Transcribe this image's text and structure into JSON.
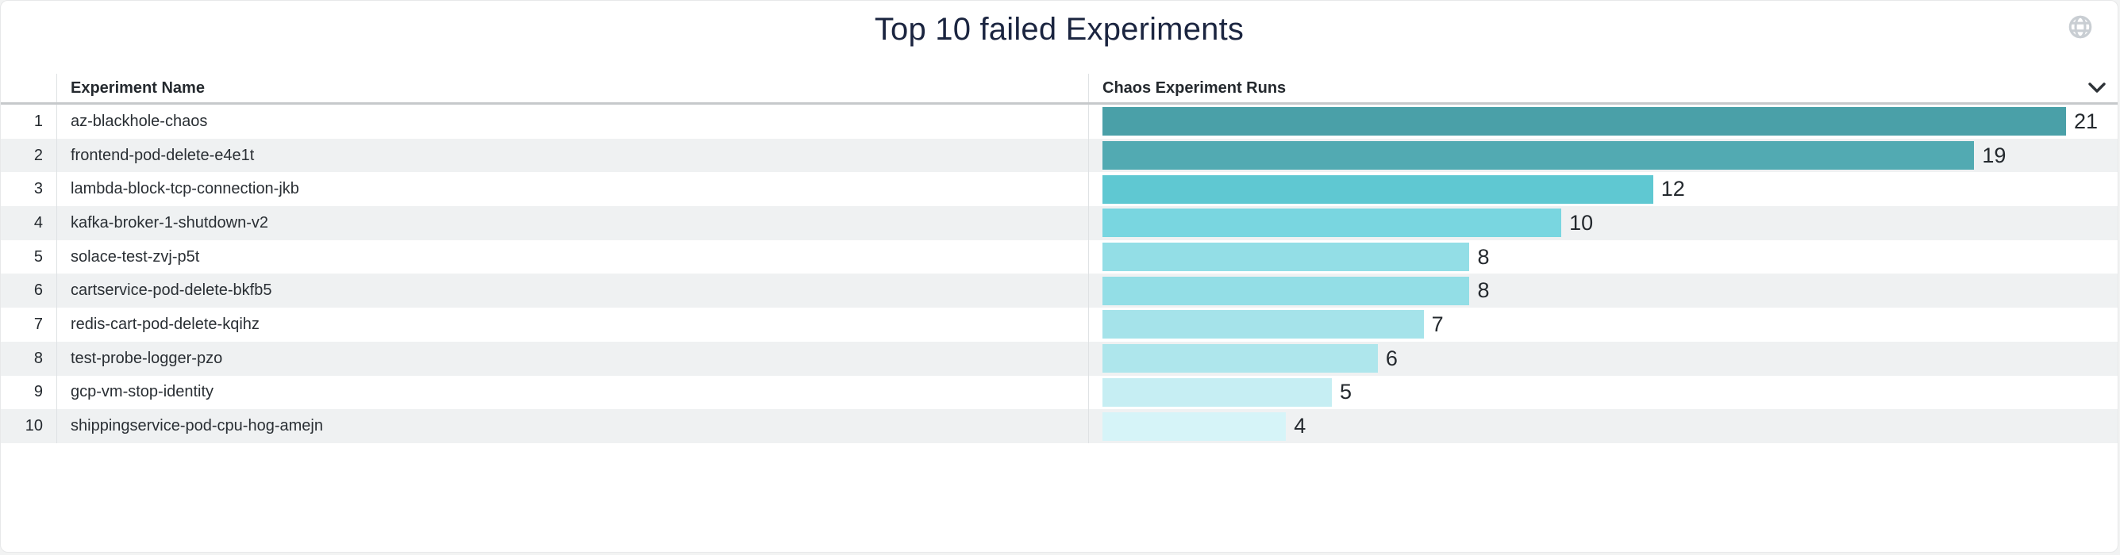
{
  "page": {
    "title": "Top 10 failed Experiments"
  },
  "header": {
    "columns": [
      {
        "label": "Experiment Name"
      },
      {
        "label": "Chaos Experiment Runs"
      }
    ]
  },
  "icons": {
    "top_right": "globe-icon",
    "header_right": "chevron-down-icon"
  },
  "colors": {
    "accent_teal": "#4aa0a8",
    "row_alt_bg": "#eff1f2",
    "header_border": "#c6c9cb",
    "column_divider": "#dfe2e4",
    "title_text": "#1b2540",
    "body_text": "#24292e",
    "globe_icon": "#c9ced3",
    "chevron_icon": "#2e3338",
    "panel_bg": "#ffffff",
    "page_bg": "#f2f3f3"
  },
  "chart_data": {
    "type": "bar",
    "orientation": "horizontal",
    "title": "Top 10 failed Experiments",
    "xlabel": "Chaos Experiment Runs",
    "ylabel": "Experiment Name",
    "ranks": [
      1,
      2,
      3,
      4,
      5,
      6,
      7,
      8,
      9,
      10
    ],
    "categories": [
      "az-blackhole-chaos",
      "frontend-pod-delete-e4e1t",
      "lambda-block-tcp-connection-jkb",
      "kafka-broker-1-shutdown-v2",
      "solace-test-zvj-p5t",
      "cartservice-pod-delete-bkfb5",
      "redis-cart-pod-delete-kqihz",
      "test-probe-logger-pzo",
      "gcp-vm-stop-identity",
      "shippingservice-pod-cpu-hog-amejn"
    ],
    "values": [
      21,
      19,
      12,
      10,
      8,
      8,
      7,
      6,
      5,
      4
    ],
    "xlim": [
      0,
      21
    ],
    "grid": false,
    "legend": false,
    "zebra_striping": true,
    "bar_colors": [
      "#4aa0a8",
      "#52aab2",
      "#5fc8d2",
      "#79d6e0",
      "#93dee6",
      "#93dee6",
      "#a5e3ea",
      "#aee6ec",
      "#c6eef3",
      "#d6f4f8"
    ]
  }
}
